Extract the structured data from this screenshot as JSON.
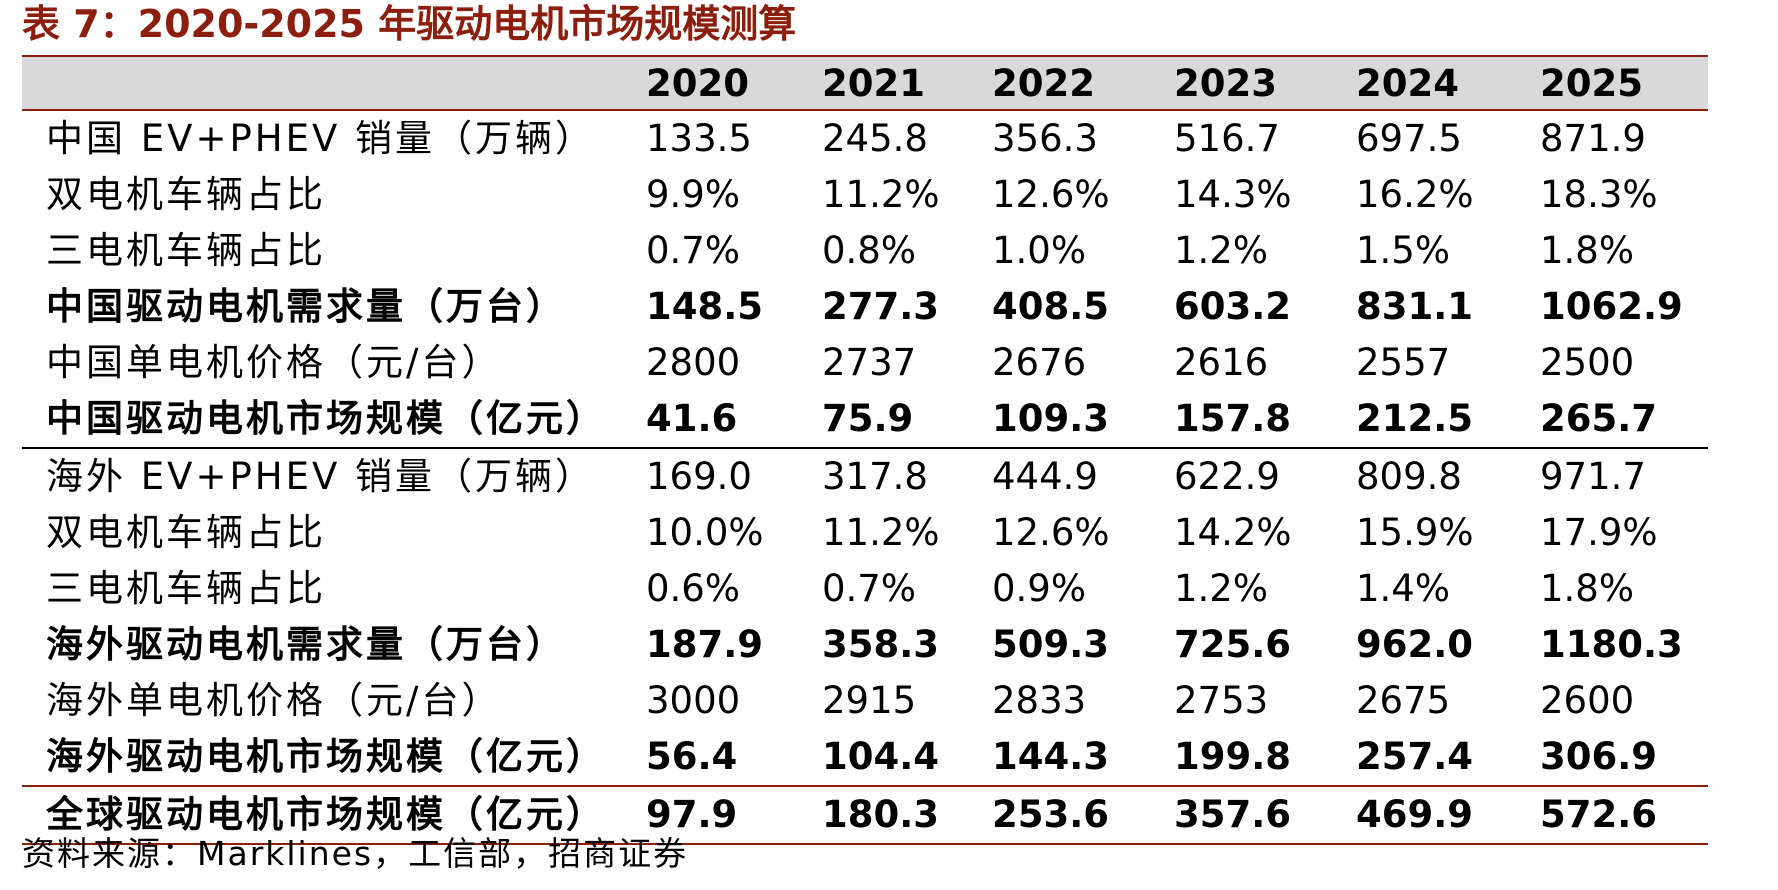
{
  "title": "表 7：2020-2025 年驱动电机市场规模测算",
  "years": [
    "2020",
    "2021",
    "2022",
    "2023",
    "2024",
    "2025"
  ],
  "rows": [
    {
      "label": "中国 EV+PHEV 销量（万辆）",
      "values": [
        "133.5",
        "245.8",
        "356.3",
        "516.7",
        "697.5",
        "871.9"
      ]
    },
    {
      "label": "双电机车辆占比",
      "values": [
        "9.9%",
        "11.2%",
        "12.6%",
        "14.3%",
        "16.2%",
        "18.3%"
      ]
    },
    {
      "label": "三电机车辆占比",
      "values": [
        "0.7%",
        "0.8%",
        "1.0%",
        "1.2%",
        "1.5%",
        "1.8%"
      ]
    },
    {
      "label": "中国驱动电机需求量（万台）",
      "values": [
        "148.5",
        "277.3",
        "408.5",
        "603.2",
        "831.1",
        "1062.9"
      ]
    },
    {
      "label": "中国单电机价格（元/台）",
      "values": [
        "2800",
        "2737",
        "2676",
        "2616",
        "2557",
        "2500"
      ]
    },
    {
      "label": "中国驱动电机市场规模（亿元）",
      "values": [
        "41.6",
        "75.9",
        "109.3",
        "157.8",
        "212.5",
        "265.7"
      ]
    },
    {
      "label": "海外 EV+PHEV 销量（万辆）",
      "values": [
        "169.0",
        "317.8",
        "444.9",
        "622.9",
        "809.8",
        "971.7"
      ]
    },
    {
      "label": "双电机车辆占比",
      "values": [
        "10.0%",
        "11.2%",
        "12.6%",
        "14.2%",
        "15.9%",
        "17.9%"
      ]
    },
    {
      "label": "三电机车辆占比",
      "values": [
        "0.6%",
        "0.7%",
        "0.9%",
        "1.2%",
        "1.4%",
        "1.8%"
      ]
    },
    {
      "label": "海外驱动电机需求量（万台）",
      "values": [
        "187.9",
        "358.3",
        "509.3",
        "725.6",
        "962.0",
        "1180.3"
      ]
    },
    {
      "label": "海外单电机价格（元/台）",
      "values": [
        "3000",
        "2915",
        "2833",
        "2753",
        "2675",
        "2600"
      ]
    },
    {
      "label": "海外驱动电机市场规模（亿元）",
      "values": [
        "56.4",
        "104.4",
        "144.3",
        "199.8",
        "257.4",
        "306.9"
      ]
    },
    {
      "label": "全球驱动电机市场规模（亿元）",
      "values": [
        "97.9",
        "180.3",
        "253.6",
        "357.6",
        "469.9",
        "572.6"
      ]
    }
  ],
  "source": "资料来源：Marklines，工信部，招商证券",
  "colors": {
    "accent": "#8b1e0c",
    "header_bg": "#d9d9d9"
  }
}
